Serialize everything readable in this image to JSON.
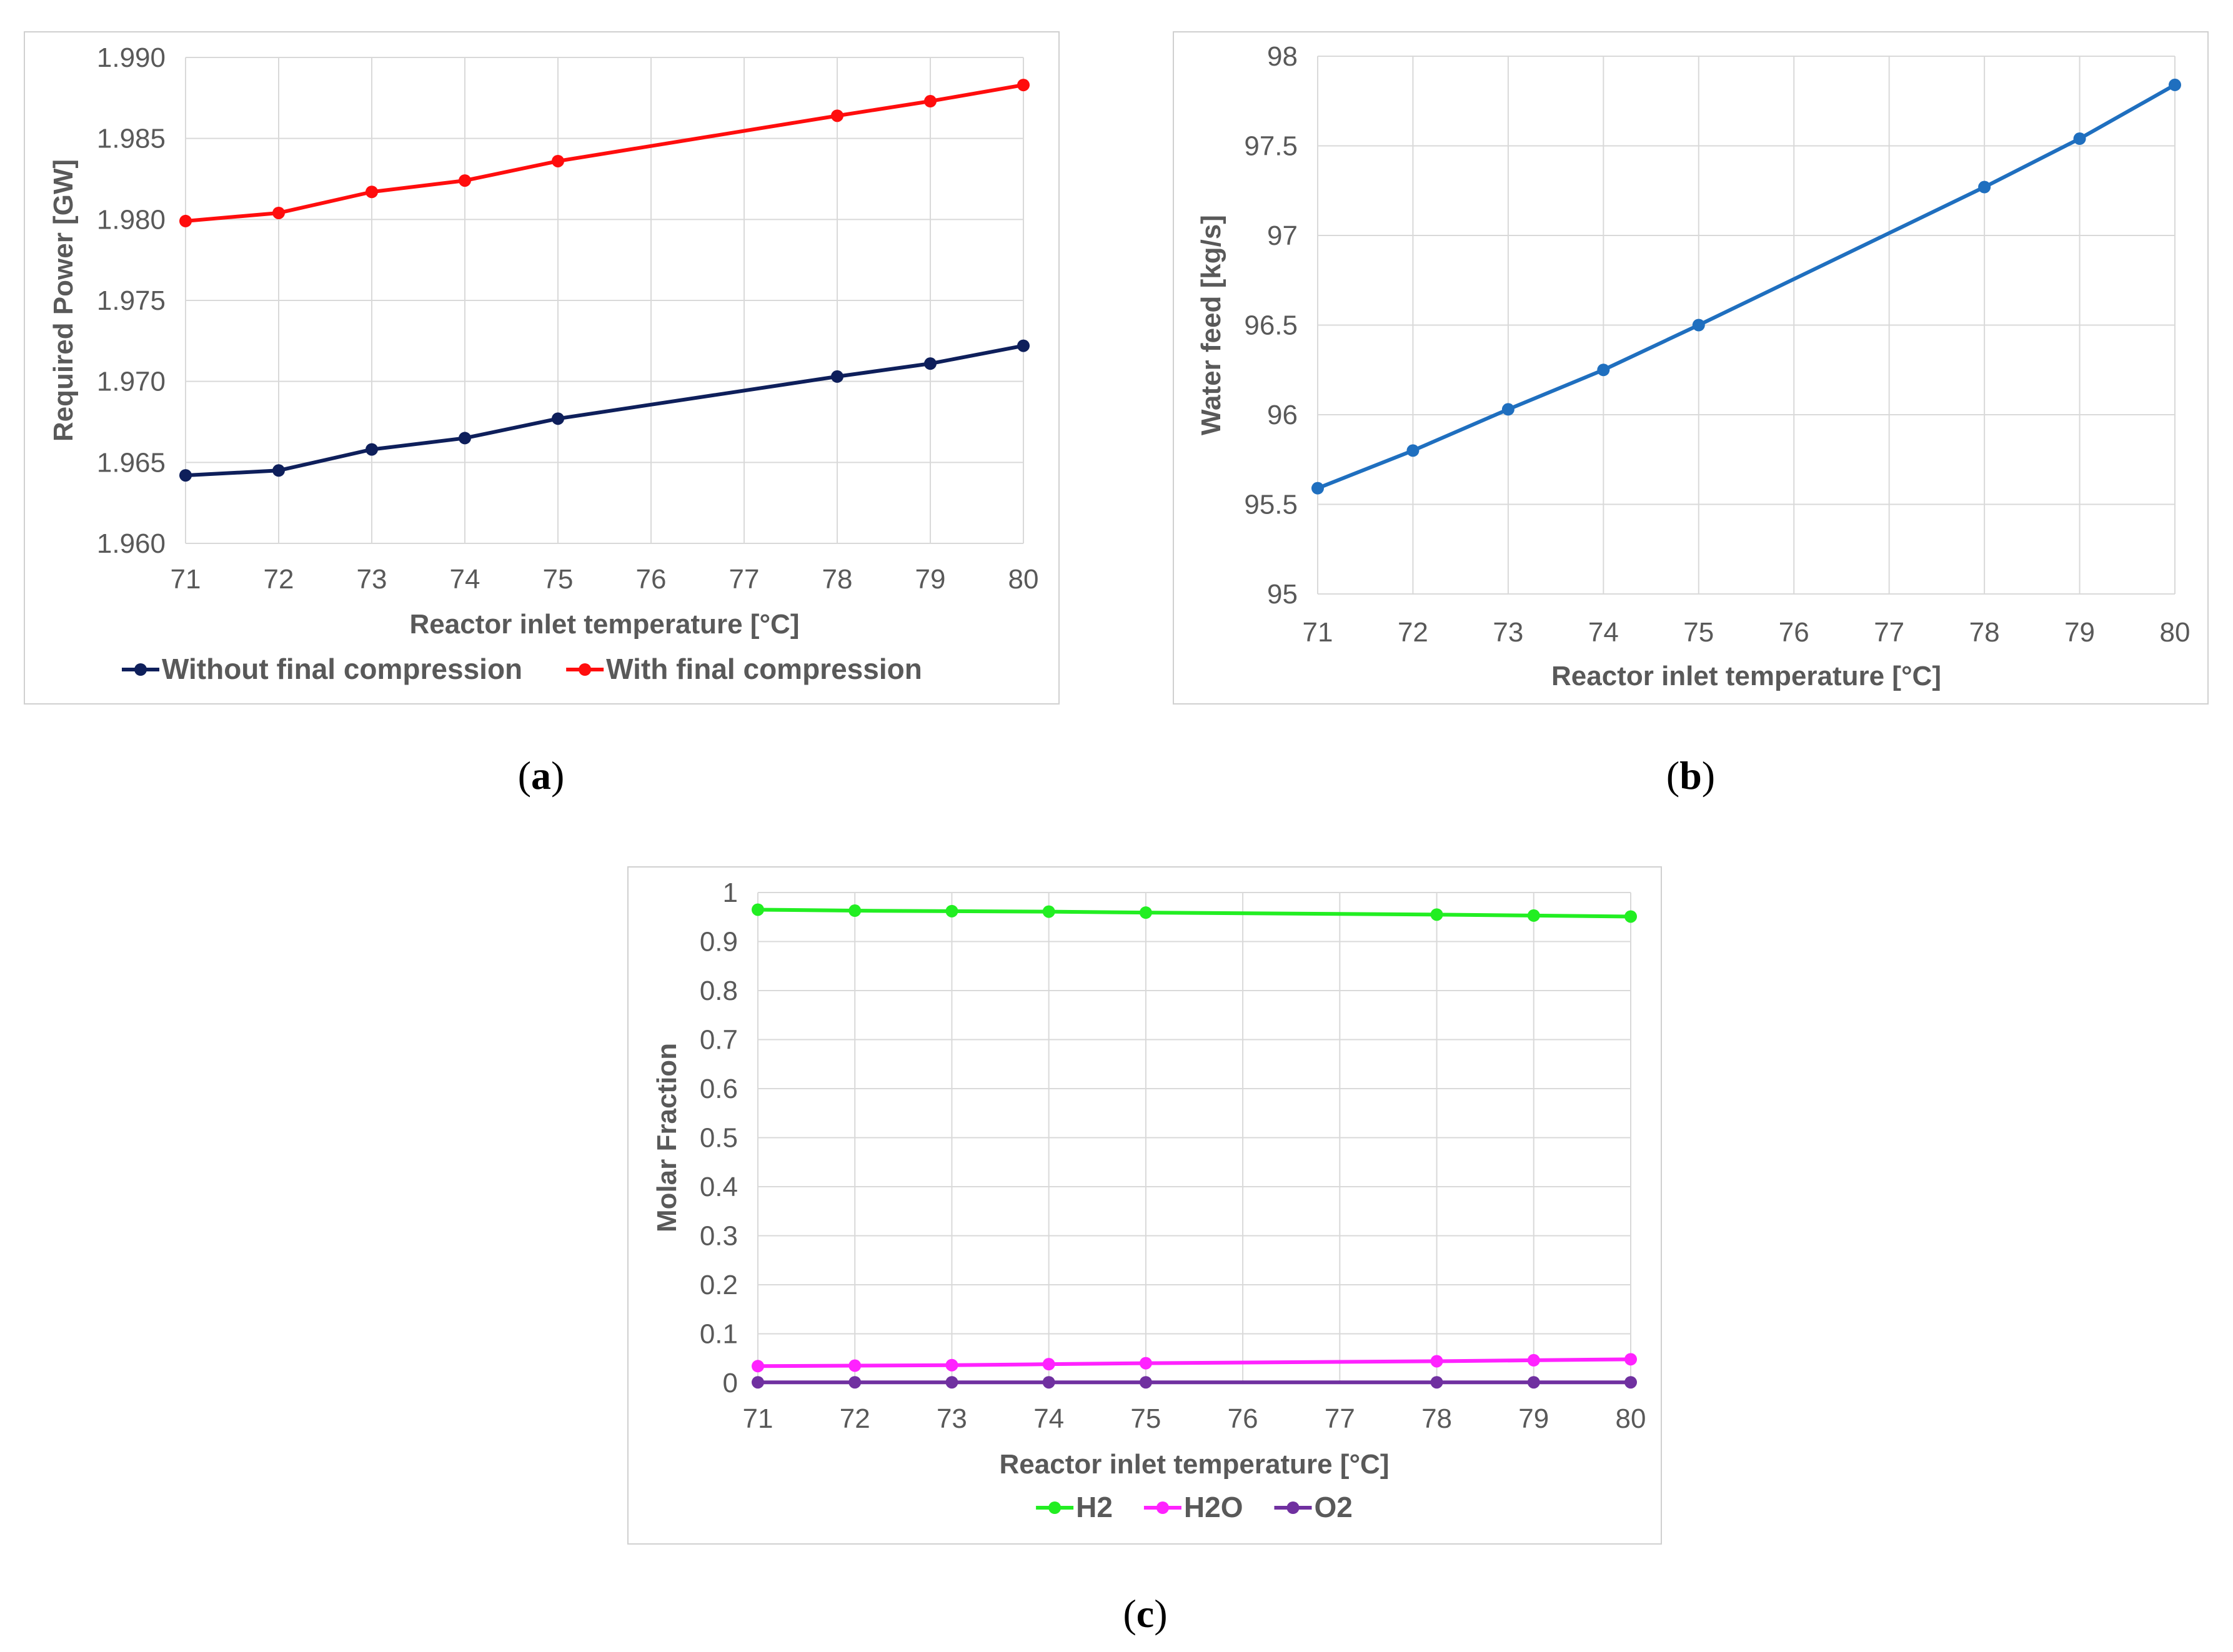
{
  "chart_data": [
    {
      "id": "a",
      "type": "line",
      "x": [
        71,
        72,
        73,
        74,
        75,
        78,
        79,
        80
      ],
      "series": [
        {
          "name": "Without final compression",
          "color": "#0e1f5b",
          "values": [
            1.9642,
            1.9645,
            1.9658,
            1.9665,
            1.9677,
            1.9703,
            1.9711,
            1.9722
          ]
        },
        {
          "name": "With final compression",
          "color": "#ff0d0d",
          "values": [
            1.9799,
            1.9804,
            1.9817,
            1.9824,
            1.9836,
            1.9864,
            1.9873,
            1.9883
          ]
        }
      ],
      "xticks": [
        "71",
        "72",
        "73",
        "74",
        "75",
        "76",
        "77",
        "78",
        "79",
        "80"
      ],
      "yticks": [
        "1.960",
        "1.965",
        "1.970",
        "1.975",
        "1.980",
        "1.985",
        "1.990"
      ],
      "xlim": [
        71,
        80
      ],
      "ylim": [
        1.96,
        1.99
      ],
      "xlabel": "Reactor inlet temperature [°C]",
      "ylabel": "Required Power [GW]",
      "grid": true,
      "legend": "bottom"
    },
    {
      "id": "b",
      "type": "line",
      "x": [
        71,
        72,
        73,
        74,
        75,
        78,
        79,
        80
      ],
      "series": [
        {
          "name": "Water feed",
          "color": "#1f6fbf",
          "values": [
            95.59,
            95.8,
            96.03,
            96.25,
            96.5,
            97.27,
            97.54,
            97.84
          ]
        }
      ],
      "xticks": [
        "71",
        "72",
        "73",
        "74",
        "75",
        "76",
        "77",
        "78",
        "79",
        "80"
      ],
      "yticks": [
        "95",
        "95.5",
        "96",
        "96.5",
        "97",
        "97.5",
        "98"
      ],
      "xlim": [
        71,
        80
      ],
      "ylim": [
        95,
        98
      ],
      "xlabel": "Reactor inlet temperature [°C]",
      "ylabel": "Water feed [kg/s]",
      "grid": true,
      "legend": "none"
    },
    {
      "id": "c",
      "type": "line",
      "x": [
        71,
        72,
        73,
        74,
        75,
        78,
        79,
        80
      ],
      "series": [
        {
          "name": "H2",
          "color": "#22ee22",
          "values": [
            0.965,
            0.963,
            0.962,
            0.961,
            0.959,
            0.955,
            0.953,
            0.951
          ]
        },
        {
          "name": "H2O",
          "color": "#ff22ff",
          "values": [
            0.034,
            0.035,
            0.036,
            0.038,
            0.04,
            0.044,
            0.046,
            0.048
          ]
        },
        {
          "name": "O2",
          "color": "#7030a0",
          "values": [
            0.001,
            0.001,
            0.001,
            0.001,
            0.001,
            0.001,
            0.001,
            0.001
          ]
        }
      ],
      "xticks": [
        "71",
        "72",
        "73",
        "74",
        "75",
        "76",
        "77",
        "78",
        "79",
        "80"
      ],
      "yticks": [
        "0",
        "0.1",
        "0.2",
        "0.3",
        "0.4",
        "0.5",
        "0.6",
        "0.7",
        "0.8",
        "0.9",
        "1"
      ],
      "xlim": [
        71,
        80
      ],
      "ylim": [
        0,
        1
      ],
      "xlabel": "Reactor inlet temperature [°C]",
      "ylabel": "Molar Fraction",
      "grid": true,
      "legend": "bottom"
    }
  ],
  "captions": {
    "a": {
      "open": "(",
      "letter": "a",
      "close": ")"
    },
    "b": {
      "open": "(",
      "letter": "b",
      "close": ")"
    },
    "c": {
      "open": "(",
      "letter": "c",
      "close": ")"
    }
  }
}
